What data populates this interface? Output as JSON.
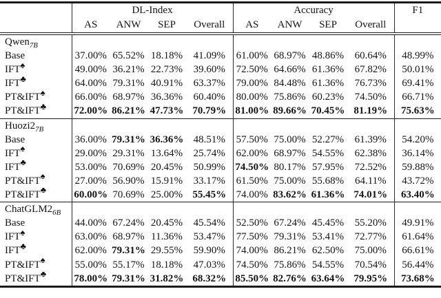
{
  "page": {
    "background": "#ffffff",
    "text_color": "#141414",
    "rule_color": "#1a1a1a"
  },
  "table": {
    "suit_icons": {
      "spade": "♠",
      "club": "♣"
    },
    "header": {
      "groups": [
        {
          "label": "DL-Index",
          "columns": [
            "AS",
            "ANW",
            "SEP",
            "Overall"
          ]
        },
        {
          "label": "Accuracy",
          "columns": [
            "AS",
            "ANW",
            "SEP",
            "Overall"
          ]
        },
        {
          "label": "F1",
          "columns": []
        }
      ]
    },
    "groups": [
      {
        "id": "qwen-7b",
        "name": "Qwen",
        "subscript": "7B",
        "rows": [
          {
            "label": "Base",
            "suit": "",
            "values": [
              "37.00%",
              "65.52%",
              "18.18%",
              "41.09%",
              "61.00%",
              "68.97%",
              "48.86%",
              "60.64%",
              "48.99%"
            ],
            "bold": [
              0,
              0,
              0,
              0,
              0,
              0,
              0,
              0,
              0
            ]
          },
          {
            "label": "IFT",
            "suit": "spade",
            "values": [
              "49.00%",
              "36.21%",
              "22.73%",
              "39.60%",
              "72.50%",
              "64.66%",
              "61.36%",
              "67.82%",
              "50.01%"
            ],
            "bold": [
              0,
              0,
              0,
              0,
              0,
              0,
              0,
              0,
              0
            ]
          },
          {
            "label": "IFT",
            "suit": "club",
            "values": [
              "64.00%",
              "79.31%",
              "40.91%",
              "63.37%",
              "79.00%",
              "84.48%",
              "61.36%",
              "76.73%",
              "69.41%"
            ],
            "bold": [
              0,
              0,
              0,
              0,
              0,
              0,
              0,
              0,
              0
            ]
          },
          {
            "label": "PT&IFT",
            "suit": "spade",
            "values": [
              "66.00%",
              "68.97%",
              "36.36%",
              "60.40%",
              "80.00%",
              "75.86%",
              "60.23%",
              "74.50%",
              "66.71%"
            ],
            "bold": [
              0,
              0,
              0,
              0,
              0,
              0,
              0,
              0,
              0
            ]
          },
          {
            "label": "PT&IFT",
            "suit": "club",
            "values": [
              "72.00%",
              "86.21%",
              "47.73%",
              "70.79%",
              "81.00%",
              "89.66%",
              "70.45%",
              "81.19%",
              "75.63%"
            ],
            "bold": [
              1,
              1,
              1,
              1,
              1,
              1,
              1,
              1,
              1
            ]
          }
        ]
      },
      {
        "id": "huozi2-7b",
        "name": "Huozi2",
        "subscript": "7B",
        "rows": [
          {
            "label": "Base",
            "suit": "",
            "values": [
              "36.00%",
              "79.31%",
              "36.36%",
              "48.51%",
              "57.50%",
              "75.00%",
              "52.27%",
              "61.39%",
              "54.20%"
            ],
            "bold": [
              0,
              1,
              1,
              0,
              0,
              0,
              0,
              0,
              0
            ]
          },
          {
            "label": "IFT",
            "suit": "spade",
            "values": [
              "29.00%",
              "29.31%",
              "13.64%",
              "25.74%",
              "62.00%",
              "68.97%",
              "54.55%",
              "62.38%",
              "36.14%"
            ],
            "bold": [
              0,
              0,
              0,
              0,
              0,
              0,
              0,
              0,
              0
            ]
          },
          {
            "label": "IFT",
            "suit": "club",
            "values": [
              "53.00%",
              "70.69%",
              "20.45%",
              "50.99%",
              "74.50%",
              "80.17%",
              "57.95%",
              "72.52%",
              "59.88%"
            ],
            "bold": [
              0,
              0,
              0,
              0,
              1,
              0,
              0,
              0,
              0
            ]
          },
          {
            "label": "PT&IFT",
            "suit": "spade",
            "values": [
              "27.00%",
              "56.90%",
              "15.91%",
              "33.17%",
              "61.50%",
              "75.00%",
              "55.68%",
              "64.11%",
              "43.72%"
            ],
            "bold": [
              0,
              0,
              0,
              0,
              0,
              0,
              0,
              0,
              0
            ]
          },
          {
            "label": "PT&IFT",
            "suit": "club",
            "values": [
              "60.00%",
              "70.69%",
              "25.00%",
              "55.45%",
              "74.00%",
              "83.62%",
              "61.36%",
              "74.01%",
              "63.40%"
            ],
            "bold": [
              1,
              0,
              0,
              1,
              0,
              1,
              1,
              1,
              1
            ]
          }
        ]
      },
      {
        "id": "chatglm2-6b",
        "name": "ChatGLM2",
        "subscript": "6B",
        "rows": [
          {
            "label": "Base",
            "suit": "",
            "values": [
              "44.00%",
              "67.24%",
              "20.45%",
              "45.54%",
              "52.50%",
              "67.24%",
              "45.45%",
              "55.20%",
              "49.91%"
            ],
            "bold": [
              0,
              0,
              0,
              0,
              0,
              0,
              0,
              0,
              0
            ]
          },
          {
            "label": "IFT",
            "suit": "spade",
            "values": [
              "63.00%",
              "68.97%",
              "11.36%",
              "53.47%",
              "77.50%",
              "79.31%",
              "53.41%",
              "72.77%",
              "61.64%"
            ],
            "bold": [
              0,
              0,
              0,
              0,
              0,
              0,
              0,
              0,
              0
            ]
          },
          {
            "label": "IFT",
            "suit": "club",
            "values": [
              "62.00%",
              "79.31%",
              "29.55%",
              "59.90%",
              "74.00%",
              "86.21%",
              "62.50%",
              "75.00%",
              "66.61%"
            ],
            "bold": [
              0,
              1,
              0,
              0,
              0,
              0,
              0,
              0,
              0
            ]
          },
          {
            "label": "PT&IFT",
            "suit": "spade",
            "values": [
              "55.00%",
              "55.17%",
              "18.18%",
              "47.03%",
              "74.50%",
              "75.86%",
              "54.55%",
              "70.54%",
              "56.44%"
            ],
            "bold": [
              0,
              0,
              0,
              0,
              0,
              0,
              0,
              0,
              0
            ]
          },
          {
            "label": "PT&IFT",
            "suit": "club",
            "values": [
              "78.00%",
              "79.31%",
              "31.82%",
              "68.32%",
              "85.50%",
              "82.76%",
              "63.64%",
              "79.95%",
              "73.68%"
            ],
            "bold": [
              1,
              1,
              1,
              1,
              1,
              1,
              1,
              1,
              1
            ]
          }
        ]
      }
    ]
  }
}
